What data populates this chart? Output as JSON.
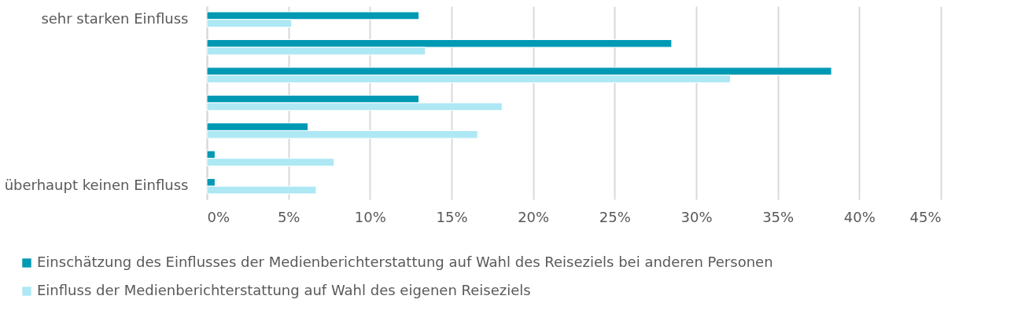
{
  "chart_data": {
    "type": "bar",
    "orientation": "horizontal",
    "categories": [
      "sehr starken Einfluss",
      null,
      null,
      null,
      null,
      null,
      "überhaupt keinen Einfluss"
    ],
    "series": [
      {
        "name": "Einschätzung des Einflusses der Medienberichterstattung auf Wahl des Reiseziels bei anderen Personen",
        "color": "#0099b4",
        "values": [
          13.0,
          28.5,
          38.3,
          13.0,
          6.2,
          0.5,
          0.5
        ]
      },
      {
        "name": "Einfluss der Medienberichterstattung auf Wahl des eigenen Reiseziels",
        "color": "#ade8f4",
        "values": [
          5.2,
          13.4,
          32.1,
          18.1,
          16.6,
          7.8,
          6.7
        ]
      }
    ],
    "xlim": [
      0,
      45
    ],
    "xticks": [
      {
        "value": 0,
        "label": "0%"
      },
      {
        "value": 5,
        "label": "5%"
      },
      {
        "value": 10,
        "label": "10%"
      },
      {
        "value": 15,
        "label": "15%"
      },
      {
        "value": 20,
        "label": "20%"
      },
      {
        "value": 25,
        "label": "25%"
      },
      {
        "value": 30,
        "label": "30%"
      },
      {
        "value": 35,
        "label": "35%"
      },
      {
        "value": 40,
        "label": "40%"
      },
      {
        "value": 45,
        "label": "45%"
      }
    ],
    "grid": "x",
    "legend": "bottom"
  }
}
